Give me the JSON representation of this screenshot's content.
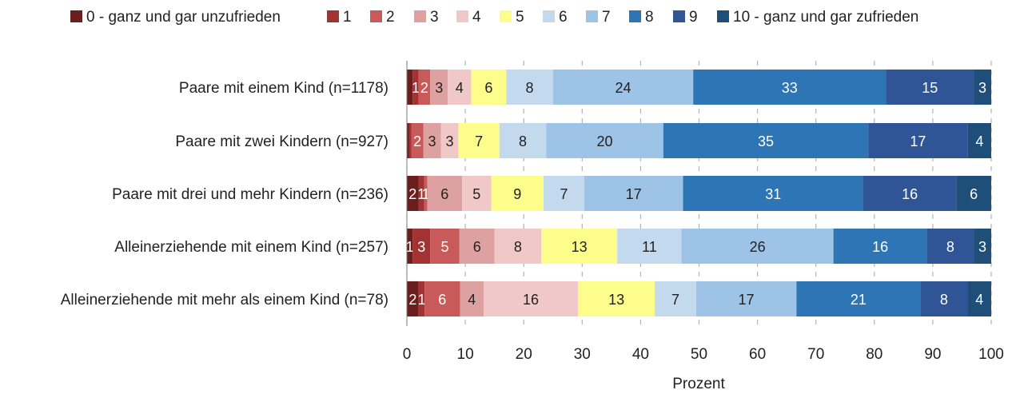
{
  "chart_data": {
    "type": "bar",
    "orientation": "horizontal",
    "stacked": true,
    "title": "",
    "xlabel": "Prozent",
    "ylabel": "",
    "xlim": [
      0,
      100
    ],
    "xticks": [
      "0",
      "10",
      "20",
      "30",
      "40",
      "50",
      "60",
      "70",
      "80",
      "90",
      "100"
    ],
    "grid": true,
    "legend_position": "top",
    "categories": [
      "Paare mit einem Kind (n=1178)",
      "Paare mit zwei Kindern (n=927)",
      "Paare mit drei und mehr Kindern (n=236)",
      "Alleinerziehende mit einem Kind (n=257)",
      "Alleinerziehende mit mehr als einem Kind (n=78)"
    ],
    "series": [
      {
        "name": "0 - ganz und gar unzufrieden",
        "color": "#6b1e1e",
        "text_color": "#ffffff",
        "values": [
          1,
          0.4,
          2,
          1,
          2
        ]
      },
      {
        "name": "1",
        "color": "#a33232",
        "text_color": "#ffffff",
        "values": [
          1,
          0.4,
          1,
          3,
          1
        ]
      },
      {
        "name": "2",
        "color": "#c85a5a",
        "text_color": "#ffffff",
        "values": [
          2,
          2,
          0.5,
          5,
          6
        ]
      },
      {
        "name": "3",
        "color": "#dea1a1",
        "text_color": "#222222",
        "values": [
          3,
          3,
          6,
          6,
          4
        ]
      },
      {
        "name": "4",
        "color": "#f1c8c8",
        "text_color": "#222222",
        "values": [
          4,
          3,
          5,
          8,
          16
        ]
      },
      {
        "name": "5",
        "color": "#fdfd8c",
        "text_color": "#222222",
        "values": [
          6,
          7,
          9,
          13,
          13
        ]
      },
      {
        "name": "6",
        "color": "#c3d9ee",
        "text_color": "#222222",
        "values": [
          8,
          8,
          7,
          11,
          7
        ]
      },
      {
        "name": "7",
        "color": "#9dc3e6",
        "text_color": "#222222",
        "values": [
          24,
          20,
          17,
          26,
          17
        ]
      },
      {
        "name": "8",
        "color": "#2e75b6",
        "text_color": "#ffffff",
        "values": [
          33,
          35,
          31,
          16,
          21
        ]
      },
      {
        "name": "9",
        "color": "#2f5597",
        "text_color": "#ffffff",
        "values": [
          15,
          17,
          16,
          8,
          8
        ]
      },
      {
        "name": "10 - ganz und gar zufrieden",
        "color": "#1f4e79",
        "text_color": "#ffffff",
        "values": [
          3,
          4,
          6,
          3,
          4
        ]
      }
    ],
    "data_labels": [
      [
        "",
        "1",
        "2",
        "3",
        "4",
        "6",
        "8",
        "24",
        "33",
        "15",
        "3"
      ],
      [
        "",
        "",
        "2",
        "3",
        "3",
        "7",
        "8",
        "20",
        "35",
        "17",
        "4"
      ],
      [
        "2",
        "1",
        "1",
        "6",
        "5",
        "9",
        "7",
        "17",
        "31",
        "16",
        "6"
      ],
      [
        "1",
        "3",
        "5",
        "6",
        "8",
        "13",
        "11",
        "26",
        "16",
        "8",
        "3"
      ],
      [
        "2",
        "1",
        "6",
        "4",
        "16",
        "13",
        "7",
        "17",
        "21",
        "8",
        "4"
      ]
    ]
  }
}
